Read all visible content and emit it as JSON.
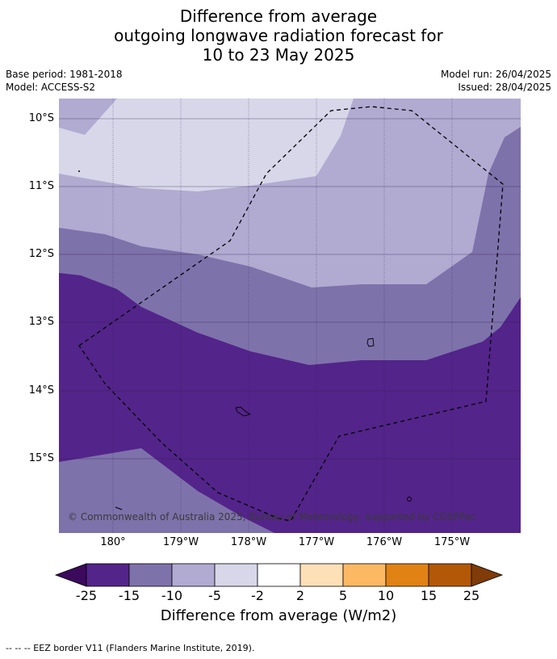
{
  "title": {
    "line1": "Difference from average",
    "line2": "outgoing longwave radiation forecast for",
    "line3": "10 to 23 May 2025"
  },
  "meta": {
    "base_period": "Base period: 1981-2018",
    "model": "Model: ACCESS-S2",
    "model_run": "Model run: 26/04/2025",
    "issued": "Issued: 28/04/2025"
  },
  "map": {
    "lat_labels": [
      "10°S",
      "11°S",
      "12°S",
      "13°S",
      "14°S",
      "15°S"
    ],
    "lon_labels": [
      "180°",
      "179°W",
      "178°W",
      "177°W",
      "176°W",
      "175°W"
    ],
    "copyright": "© Commonwealth of Australia 2025, Bureau of Meteorology, supported by COSPPac",
    "region_colors": {
      "very_light": "#d7d7e9",
      "light": "#b1abd2",
      "medium": "#7e72ab",
      "dark": "#53248a"
    }
  },
  "colorbar": {
    "ticks": [
      "-25",
      "-15",
      "-10",
      "-5",
      "-2",
      "2",
      "5",
      "10",
      "15",
      "25"
    ],
    "colors": [
      "#3b0a5c",
      "#53248a",
      "#7e72ab",
      "#b1abd2",
      "#d7d7e9",
      "#ffffff",
      "#fee0b6",
      "#fdb863",
      "#e08214",
      "#b35806",
      "#7f3b08"
    ],
    "label": "Difference from average (W/m2)"
  },
  "footnote": "--  --  -- EEZ border V11 (Flanders Marine Institute, 2019)."
}
